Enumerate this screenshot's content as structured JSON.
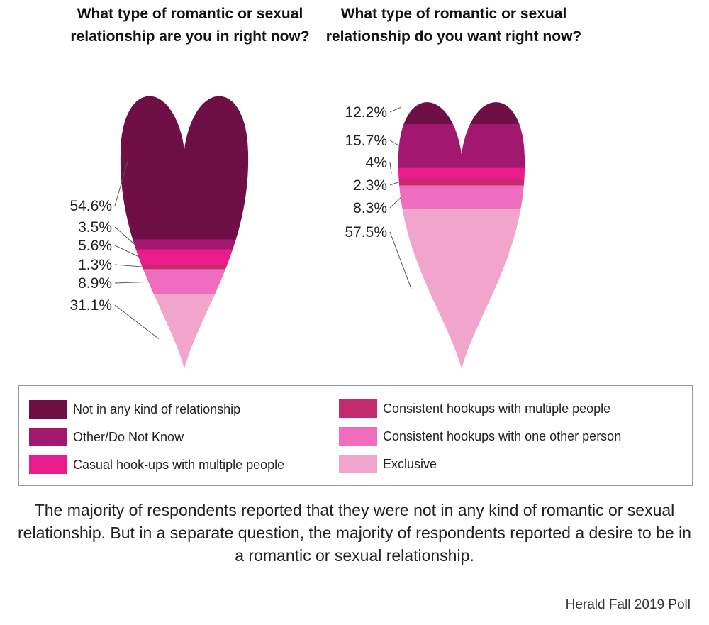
{
  "chart_data": [
    {
      "type": "heart-stacked",
      "title": "What type of romantic or sexual relationship are you in right now?",
      "categories": [
        "Not in any kind of relationship",
        "Other/Do Not Know",
        "Casual hook-ups with multiple people",
        "Consistent hookups with multiple people",
        "Consistent hookups with one other person",
        "Exclusive"
      ],
      "values": [
        54.6,
        3.5,
        5.6,
        1.3,
        8.9,
        31.1
      ],
      "labels": [
        "54.6%",
        "3.5%",
        "5.6%",
        "1.3%",
        "8.9%",
        "31.1%"
      ]
    },
    {
      "type": "heart-stacked",
      "title": "What type of romantic or sexual relationship do you want right now?",
      "categories": [
        "Not in any kind of relationship",
        "Other/Do Not Know",
        "Casual hook-ups with multiple people",
        "Consistent hookups with multiple people",
        "Consistent hookups with one other person",
        "Exclusive"
      ],
      "values": [
        12.2,
        15.7,
        4,
        2.3,
        8.3,
        57.5
      ],
      "labels": [
        "12.2%",
        "15.7%",
        "4%",
        "2.3%",
        "8.3%",
        "57.5%"
      ]
    }
  ],
  "titles": {
    "left": "What type of romantic or sexual relationship are you in right now?",
    "right": "What type of romantic or sexual relationship do you want right now?"
  },
  "legend": [
    {
      "label": "Not in any kind of relationship",
      "color": "#6e0f46"
    },
    {
      "label": "Other/Do Not Know",
      "color": "#a3186f"
    },
    {
      "label": "Casual hook-ups with multiple people",
      "color": "#ea1c8c"
    },
    {
      "label": "Consistent hookups with multiple people",
      "color": "#c42a6e"
    },
    {
      "label": "Consistent hookups with one other person",
      "color": "#f06cbf"
    },
    {
      "label": "Exclusive",
      "color": "#f2a5cc"
    }
  ],
  "caption": "The majority of respondents reported that they were not in any kind of romantic or sexual relationship. But in a separate question, the majority of respondents reported a desire to be in a romantic or sexual relationship.",
  "source": "Herald Fall 2019 Poll"
}
